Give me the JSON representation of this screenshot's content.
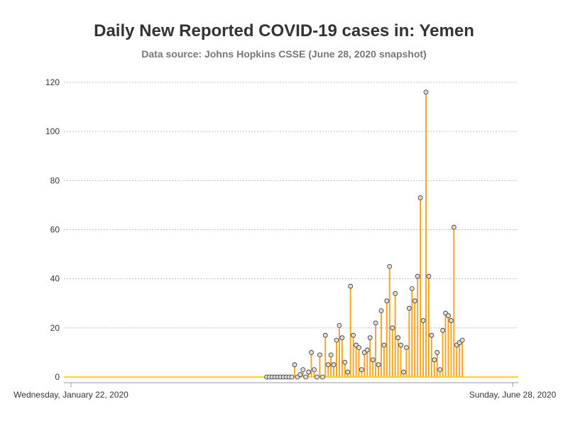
{
  "chart_data": {
    "type": "line",
    "title": "Daily New Reported COVID-19 cases in: Yemen",
    "subtitle": "Data source: Johns Hopkins CSSE (June 28, 2020 snapshot)",
    "xlabel": "",
    "ylabel": "",
    "x_start": "2020-01-22",
    "x_end": "2020-06-28",
    "x_tick_labels": [
      "Wednesday, January 22, 2020",
      "Sunday, June 28, 2020"
    ],
    "ylim": [
      0,
      120
    ],
    "y_ticks": [
      0,
      20,
      40,
      60,
      80,
      100,
      120
    ],
    "grid": true,
    "colors": {
      "stem": "#f5a623",
      "baseline": "#f5c400",
      "marker_fill": "#dddddd",
      "marker_stroke": "#333333",
      "grid": "#bbbbbb"
    },
    "markers_from": "2020-04-01",
    "values": [
      0,
      0,
      0,
      0,
      0,
      0,
      0,
      0,
      0,
      0,
      0,
      0,
      0,
      0,
      0,
      0,
      0,
      0,
      0,
      0,
      0,
      0,
      0,
      0,
      0,
      0,
      0,
      0,
      0,
      0,
      0,
      0,
      0,
      0,
      0,
      0,
      0,
      0,
      0,
      0,
      0,
      0,
      0,
      0,
      0,
      0,
      0,
      0,
      0,
      0,
      0,
      0,
      0,
      0,
      0,
      0,
      0,
      0,
      0,
      0,
      0,
      0,
      0,
      0,
      0,
      0,
      0,
      0,
      0,
      0,
      0,
      0,
      0,
      0,
      0,
      0,
      0,
      0,
      0,
      0,
      5,
      0,
      1,
      3,
      0,
      2,
      10,
      3,
      0,
      9,
      0,
      17,
      5,
      9,
      5,
      15,
      21,
      16,
      6,
      2,
      37,
      17,
      13,
      12,
      3,
      10,
      11,
      16,
      7,
      22,
      5,
      27,
      13,
      31,
      45,
      20,
      34,
      16,
      13,
      2,
      12,
      28,
      36,
      31,
      41,
      73,
      23,
      116,
      41,
      17,
      7,
      10,
      3,
      19,
      26,
      25,
      23,
      61,
      13,
      14,
      15
    ]
  }
}
